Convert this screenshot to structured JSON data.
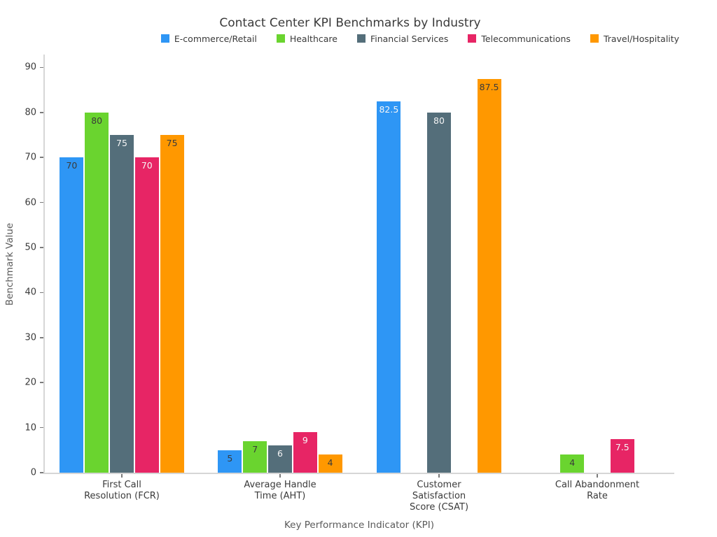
{
  "title": "Contact Center KPI Benchmarks by Industry",
  "chart_data": {
    "type": "bar",
    "title": "Contact Center KPI Benchmarks by Industry",
    "xlabel": "Key Performance Indicator (KPI)",
    "ylabel": "Benchmark Value",
    "ylim": [
      0,
      90
    ],
    "yticks": [
      0,
      10,
      20,
      30,
      40,
      50,
      60,
      70,
      80,
      90
    ],
    "grid": false,
    "legend_position": "top-center",
    "categories": [
      "First Call Resolution (FCR)",
      "Average Handle Time (AHT)",
      "Customer Satisfaction Score (CSAT)",
      "Call Abandonment Rate"
    ],
    "category_label_lines": [
      [
        "First Call",
        "Resolution (FCR)"
      ],
      [
        "Average Handle",
        "Time (AHT)"
      ],
      [
        "Customer",
        "Satisfaction",
        "Score (CSAT)"
      ],
      [
        "Call Abandonment",
        "Rate"
      ]
    ],
    "series": [
      {
        "name": "E-commerce/Retail",
        "color": "#2E96F5",
        "values": [
          70,
          5,
          82.5,
          0
        ],
        "value_labels": [
          "70",
          "5",
          "82.5",
          ""
        ],
        "label_colors": [
          "#3a3a3a",
          "#3a3a3a",
          "#f5f5f5",
          null
        ]
      },
      {
        "name": "Healthcare",
        "color": "#6AD42F",
        "values": [
          80,
          7,
          0,
          4
        ],
        "value_labels": [
          "80",
          "7",
          "",
          "4"
        ],
        "label_colors": [
          "#3a3a3a",
          "#3a3a3a",
          null,
          "#3a3a3a"
        ]
      },
      {
        "name": "Financial Services",
        "color": "#546E7A",
        "values": [
          75,
          6,
          80,
          0
        ],
        "value_labels": [
          "75",
          "6",
          "80",
          ""
        ],
        "label_colors": [
          "#f5f5f5",
          "#f5f5f5",
          "#f5f5f5",
          null
        ]
      },
      {
        "name": "Telecommunications",
        "color": "#E72565",
        "values": [
          70,
          9,
          0,
          7.5
        ],
        "value_labels": [
          "70",
          "9",
          "",
          "7.5"
        ],
        "label_colors": [
          "#f5f5f5",
          "#f5f5f5",
          null,
          "#f5f5f5"
        ]
      },
      {
        "name": "Travel/Hospitality",
        "color": "#FF9800",
        "values": [
          75,
          4,
          87.5,
          0
        ],
        "value_labels": [
          "75",
          "4",
          "87.5",
          ""
        ],
        "label_colors": [
          "#3a3a3a",
          "#3a3a3a",
          "#3a3a3a",
          null
        ]
      }
    ]
  },
  "colors": {
    "background": "#ffffff",
    "title_text": "#3a3a3a",
    "axis_label_text": "#5a5a5a",
    "tick_text": "#3a3a3a",
    "spine": "#d6d6d6"
  }
}
